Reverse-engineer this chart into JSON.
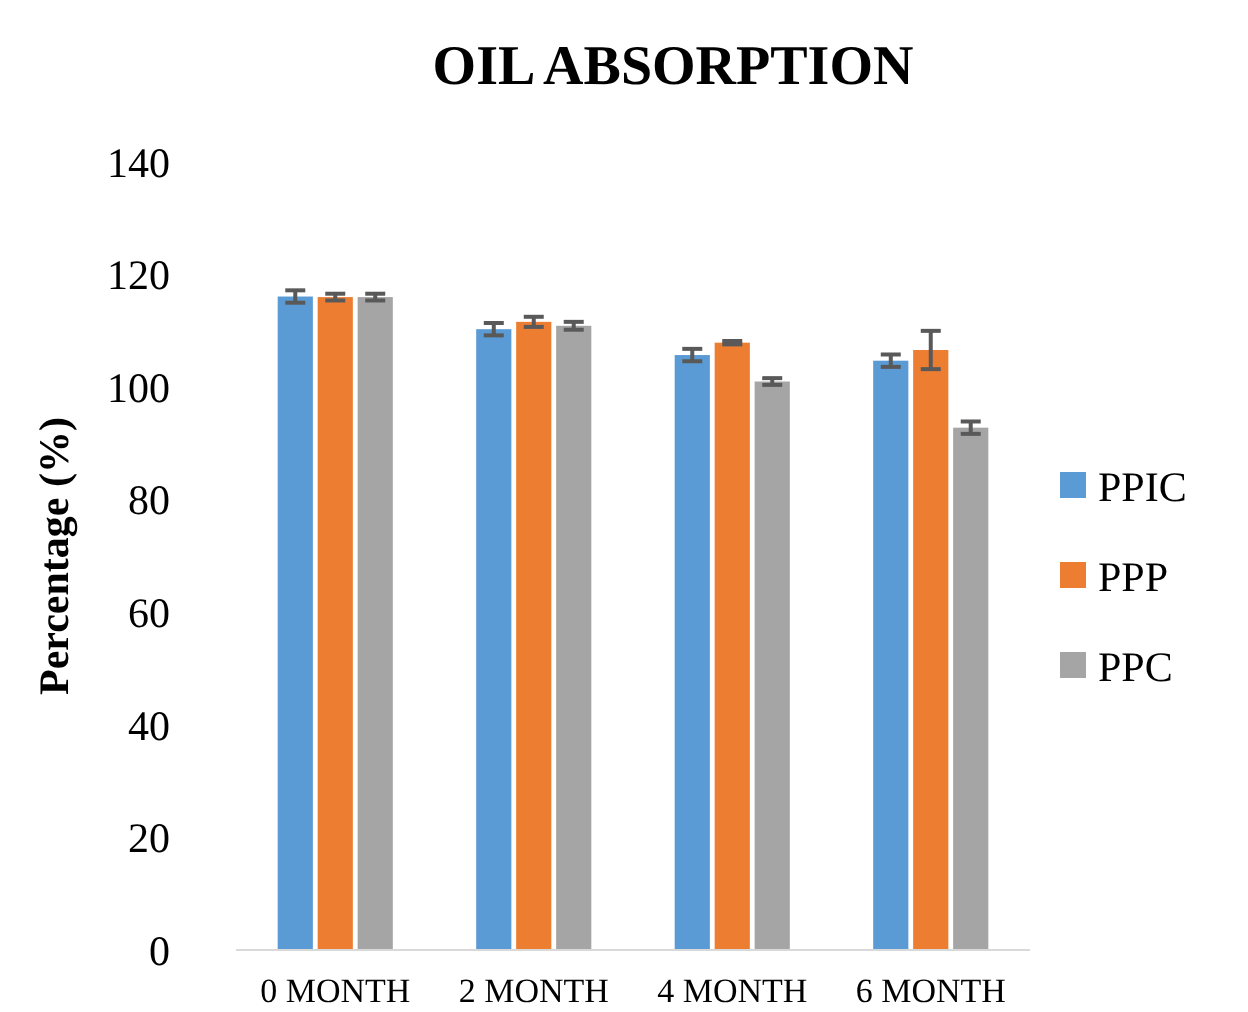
{
  "chart_data": {
    "type": "bar",
    "title": "OIL  ABSORPTION",
    "ylabel": "Percentage (%)",
    "categories": [
      "0 MONTH",
      "2 MONTH",
      "4 MONTH",
      "6 MONTH"
    ],
    "series": [
      {
        "name": "PPIC",
        "color": "#5b9bd5",
        "values": [
          116.1,
          110.3,
          105.7,
          104.7
        ],
        "errors": [
          1.1,
          1.1,
          1.1,
          1.1
        ]
      },
      {
        "name": "PPP",
        "color": "#ed7d31",
        "values": [
          116,
          111.6,
          107.9,
          106.6
        ],
        "errors": [
          0.6,
          0.9,
          0.3,
          3.4
        ]
      },
      {
        "name": "PPC",
        "color": "#a5a5a5",
        "values": [
          116,
          110.9,
          101,
          92.8
        ],
        "errors": [
          0.6,
          0.7,
          0.6,
          1.1
        ]
      }
    ],
    "ylim": [
      0,
      140
    ],
    "yticks": [
      0,
      20,
      40,
      60,
      80,
      100,
      120,
      140
    ],
    "grid": false,
    "legend": "right"
  }
}
